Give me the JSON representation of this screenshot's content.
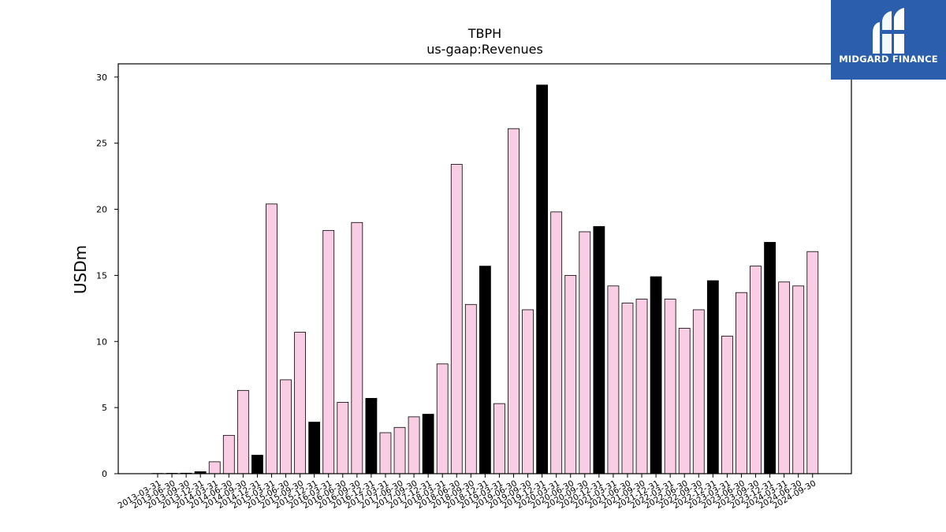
{
  "brand": {
    "name": "MIDGARD FINANCE",
    "logo_icon": "midgard-finance-logo-icon",
    "background": "#2b5fad"
  },
  "chart_data": {
    "type": "bar",
    "title": "TBPH",
    "subtitle": "us-gaap:Revenues",
    "xlabel": "",
    "ylabel": "USDm",
    "ylim": [
      0,
      31
    ],
    "yticks": [
      0,
      5,
      10,
      15,
      20,
      25,
      30
    ],
    "grid": false,
    "legend": "none",
    "colors": {
      "quarter": "#f9cde3",
      "fiscal_year_end": "#000000",
      "edge": "#000000"
    },
    "categories": [
      "2013-03-31",
      "2013-06-30",
      "2013-09-30",
      "2013-12-31",
      "2014-03-31",
      "2014-06-30",
      "2014-09-30",
      "2014-12-31",
      "2015-03-31",
      "2015-06-30",
      "2015-09-30",
      "2015-12-31",
      "2016-03-31",
      "2016-06-30",
      "2016-09-30",
      "2016-12-31",
      "2017-03-31",
      "2017-06-30",
      "2017-09-30",
      "2017-12-31",
      "2018-03-31",
      "2018-06-30",
      "2018-09-30",
      "2018-12-31",
      "2019-03-31",
      "2019-06-30",
      "2019-09-30",
      "2019-12-31",
      "2020-03-31",
      "2020-06-30",
      "2020-09-30",
      "2020-12-31",
      "2021-03-31",
      "2021-06-30",
      "2021-09-30",
      "2021-12-31",
      "2022-03-31",
      "2022-06-30",
      "2022-09-30",
      "2022-12-31",
      "2023-03-31",
      "2023-06-30",
      "2023-09-30",
      "2023-12-31",
      "2024-03-31",
      "2024-06-30",
      "2024-09-30"
    ],
    "values": [
      0.02,
      0.03,
      0.04,
      0.15,
      0.9,
      2.9,
      6.3,
      1.4,
      20.4,
      7.1,
      10.7,
      3.9,
      18.4,
      5.4,
      19.0,
      5.7,
      3.1,
      3.5,
      4.3,
      4.5,
      8.3,
      23.4,
      12.8,
      15.7,
      5.3,
      26.1,
      12.4,
      29.4,
      19.8,
      15.0,
      18.3,
      18.7,
      14.2,
      12.9,
      13.2,
      14.9,
      13.2,
      11.0,
      12.4,
      14.6,
      10.4,
      13.7,
      15.7,
      17.5,
      14.5,
      14.2,
      16.8
    ],
    "highlight_year_end": [
      false,
      false,
      false,
      true,
      false,
      false,
      false,
      true,
      false,
      false,
      false,
      true,
      false,
      false,
      false,
      true,
      false,
      false,
      false,
      true,
      false,
      false,
      false,
      true,
      false,
      false,
      false,
      true,
      false,
      false,
      false,
      true,
      false,
      false,
      false,
      true,
      false,
      false,
      false,
      true,
      false,
      false,
      false,
      true,
      false,
      false,
      false
    ]
  }
}
